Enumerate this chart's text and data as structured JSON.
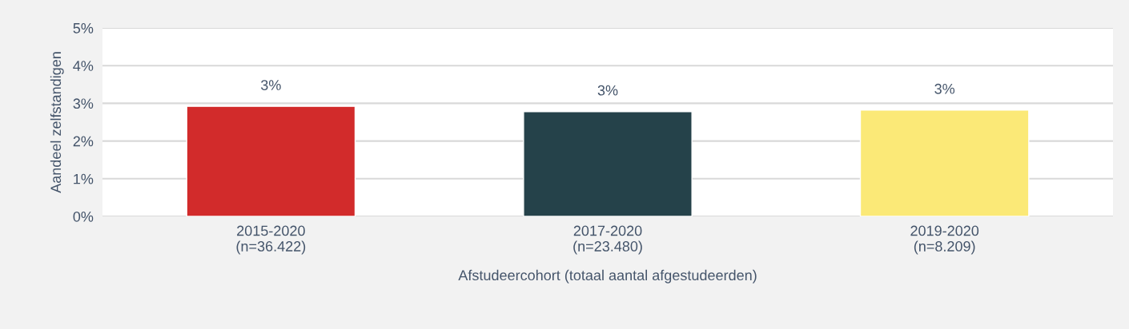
{
  "chart_data": {
    "type": "bar",
    "xlabel": "Afstudeercohort (totaal aantal afgestudeerden)",
    "ylabel": "Aandeel zelfstandigen",
    "categories": [
      "2015-2020\n(n=36.422)",
      "2017-2020\n(n=23.480)",
      "2019-2020\n(n=8.209)"
    ],
    "values": [
      2.92,
      2.78,
      2.82
    ],
    "colors": [
      "#d22b2b",
      "#25424a",
      "#fbe977"
    ],
    "value_labels": [
      "3%",
      "3%",
      "3%"
    ],
    "ylim": [
      0,
      5
    ],
    "yticks": [
      {
        "value": 0,
        "label": "0%"
      },
      {
        "value": 1,
        "label": "1%"
      },
      {
        "value": 2,
        "label": "2%"
      },
      {
        "value": 3,
        "label": "3%"
      },
      {
        "value": 4,
        "label": "4%"
      },
      {
        "value": 5,
        "label": "5%"
      }
    ],
    "grid": "y"
  }
}
